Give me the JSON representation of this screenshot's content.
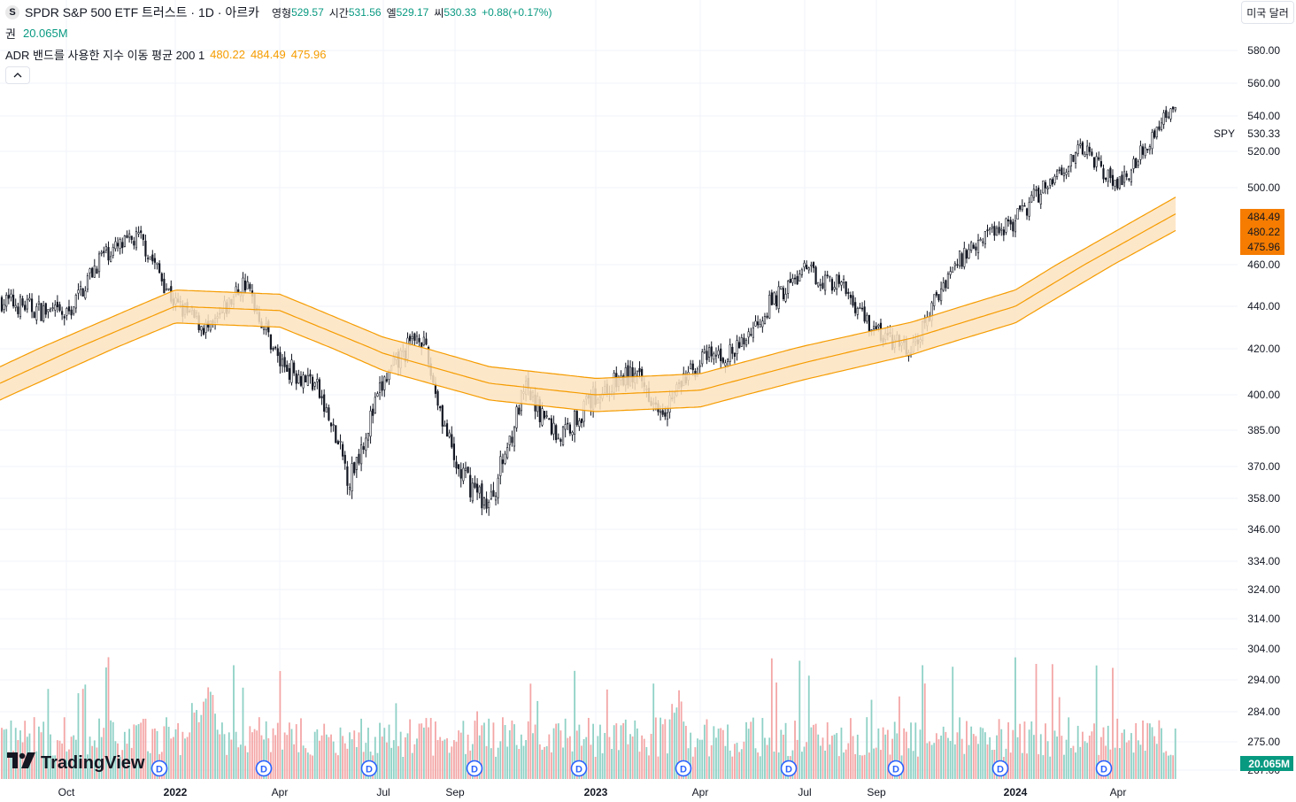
{
  "header": {
    "badge": "S",
    "title": "SPDR S&P 500 ETF 트러스트 · 1D · 아르카",
    "ohlc": [
      {
        "label": "영형",
        "value": "529.57"
      },
      {
        "label": "시간",
        "value": "531.56"
      },
      {
        "label": "엘",
        "value": "529.17"
      },
      {
        "label": "씨",
        "value": "530.33"
      }
    ],
    "change": "+0.88(+0.17%)",
    "volume_label": "권",
    "volume_value": "20.065M",
    "indicator_label": "ADR 밴드를 사용한 지수 이동 평균 200 1",
    "indicator_values": [
      "480.22",
      "484.49",
      "475.96"
    ],
    "collapse_icon": "chevron-up-icon",
    "currency_button": "미국 달러"
  },
  "logo": {
    "text": "TradingView",
    "icon": "tradingview-logo-icon"
  },
  "colors": {
    "up_volume": "#8fd1c6",
    "down_volume": "#f4a6a6",
    "band": "#f59c00",
    "band_fill": "#fde3c0",
    "candle": "#131722",
    "label_bg": "#f57c00",
    "volume_label_bg": "#089981",
    "dividend": "#2962ff"
  },
  "chart_data": {
    "type": "candlestick",
    "symbol": "SPY",
    "last_price": "530.33",
    "price_axis_ticks": [
      "580.00",
      "560.00",
      "540.00",
      "520.00",
      "500.00",
      "460.00",
      "440.00",
      "420.00",
      "400.00",
      "385.00",
      "370.00",
      "358.00",
      "346.00",
      "334.00",
      "324.00",
      "314.00",
      "304.00",
      "294.00",
      "284.00",
      "275.00",
      "267.00"
    ],
    "price_labels": {
      "upper": "484.49",
      "middle": "480.22",
      "lower": "475.96",
      "volume": "20.065M"
    },
    "x_ticks": [
      "Oct",
      "2022",
      "Apr",
      "Jul",
      "Sep",
      "2023",
      "Apr",
      "Jul",
      "Sep",
      "2024",
      "Apr"
    ],
    "x_ticks_bold": [
      "2022",
      "2023",
      "2024"
    ],
    "close_approx": [
      {
        "date": "2021-09",
        "close": 443
      },
      {
        "date": "2021-10",
        "close": 435
      },
      {
        "date": "2021-11",
        "close": 465
      },
      {
        "date": "2021-12",
        "close": 474
      },
      {
        "date": "2022-01",
        "close": 441
      },
      {
        "date": "2022-02",
        "close": 428
      },
      {
        "date": "2022-03",
        "close": 452
      },
      {
        "date": "2022-04",
        "close": 414
      },
      {
        "date": "2022-05",
        "close": 405
      },
      {
        "date": "2022-06",
        "close": 365
      },
      {
        "date": "2022-07",
        "close": 405
      },
      {
        "date": "2022-08",
        "close": 428
      },
      {
        "date": "2022-09",
        "close": 370
      },
      {
        "date": "2022-10",
        "close": 355
      },
      {
        "date": "2022-11",
        "close": 402
      },
      {
        "date": "2022-12",
        "close": 382
      },
      {
        "date": "2023-01",
        "close": 400
      },
      {
        "date": "2023-02",
        "close": 409
      },
      {
        "date": "2023-03",
        "close": 395
      },
      {
        "date": "2023-04",
        "close": 415
      },
      {
        "date": "2023-05",
        "close": 418
      },
      {
        "date": "2023-06",
        "close": 441
      },
      {
        "date": "2023-07",
        "close": 457
      },
      {
        "date": "2023-08",
        "close": 450
      },
      {
        "date": "2023-09",
        "close": 428
      },
      {
        "date": "2023-10",
        "close": 418
      },
      {
        "date": "2023-11",
        "close": 455
      },
      {
        "date": "2023-12",
        "close": 475
      },
      {
        "date": "2024-01",
        "close": 483
      },
      {
        "date": "2024-02",
        "close": 505
      },
      {
        "date": "2024-03",
        "close": 522
      },
      {
        "date": "2024-04",
        "close": 500
      },
      {
        "date": "2024-05",
        "close": 530
      }
    ],
    "ema200_approx": [
      {
        "date": "2021-09",
        "value": 405
      },
      {
        "date": "2022-01",
        "value": 440
      },
      {
        "date": "2022-04",
        "value": 438
      },
      {
        "date": "2022-07",
        "value": 418
      },
      {
        "date": "2022-10",
        "value": 405
      },
      {
        "date": "2023-01",
        "value": 400
      },
      {
        "date": "2023-04",
        "value": 402
      },
      {
        "date": "2023-07",
        "value": 414
      },
      {
        "date": "2023-10",
        "value": 425
      },
      {
        "date": "2024-01",
        "value": 440
      },
      {
        "date": "2024-05",
        "value": 480
      }
    ],
    "dividend_marker": "D",
    "dividend_months": [
      "2021-12",
      "2022-03",
      "2022-06",
      "2022-09",
      "2022-12",
      "2023-03",
      "2023-06",
      "2023-09",
      "2023-12",
      "2024-03"
    ]
  }
}
